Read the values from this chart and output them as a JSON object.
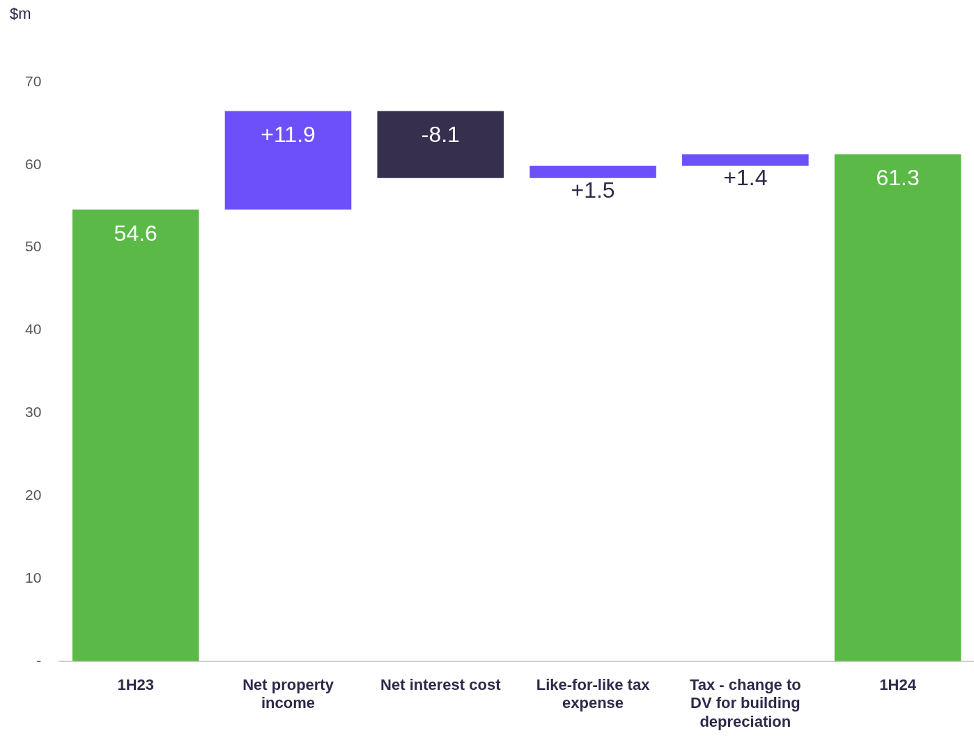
{
  "chart_data": {
    "type": "bar",
    "ylabel": "$m",
    "categories": [
      "1H23",
      "Net property income",
      "Net interest cost",
      "Like-for-like tax expense",
      "Tax - change to DV for building depreciation",
      "1H24"
    ],
    "values": [
      54.6,
      11.9,
      -8.1,
      1.5,
      1.4,
      61.3
    ],
    "base": [
      0,
      54.6,
      66.5,
      58.4,
      59.9,
      0
    ],
    "colors": [
      "#5ab947",
      "#6e50fb",
      "#372f4e",
      "#6e50fb",
      "#6e50fb",
      "#5ab947"
    ],
    "value_labels": [
      "54.6",
      "+11.9",
      "-8.1",
      "+1.5",
      "+1.4",
      "61.3"
    ],
    "ylim": [
      0,
      70
    ],
    "yticks": [
      {
        "value": 0,
        "label": "-"
      },
      10,
      20,
      30,
      40,
      50,
      60,
      70
    ],
    "grid": false,
    "legend": false
  }
}
